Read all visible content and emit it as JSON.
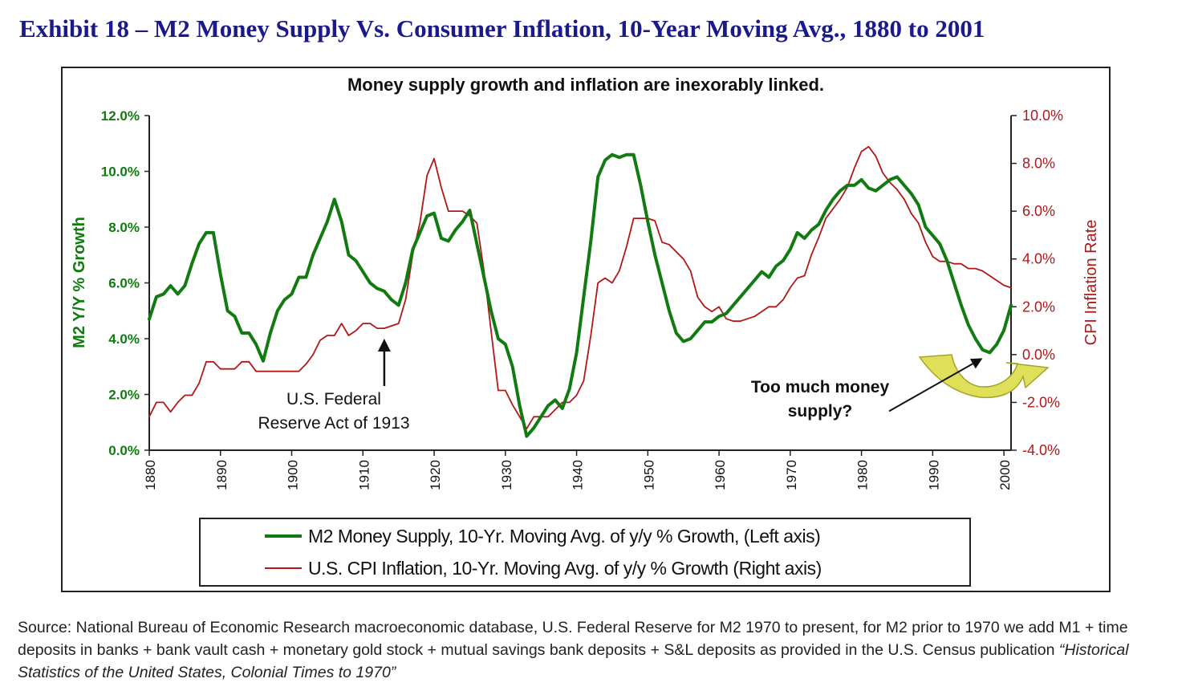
{
  "exhibit_title": "Exhibit 18 – M2 Money Supply Vs. Consumer Inflation, 10-Year Moving Avg., 1880 to 2001",
  "source_note": {
    "text": "Source: National Bureau of Economic Research macroeconomic database, U.S. Federal Reserve for M2 1970 to present, for M2 prior to 1970 we add M1 + time deposits in banks + bank vault cash + monetary gold stock + mutual savings bank deposits + S&L deposits as provided in the U.S. Census publication ",
    "italic": "“Historical Statistics of the United States, Colonial Times to 1970”"
  },
  "colors": {
    "m2": "#117a11",
    "cpi": "#b01818",
    "left_axis": "#117a11",
    "right_axis": "#b01818",
    "arrow_yellow": "#e0df5a"
  },
  "chart_data": {
    "type": "line",
    "title": "Money supply growth and inflation are inexorably linked.",
    "xlabel": "",
    "ylabel": "M2 Y/Y % Growth",
    "y2label": "CPI Inflation Rate",
    "xlim": [
      1880,
      2001
    ],
    "ylim": [
      0,
      12
    ],
    "y2lim": [
      -4,
      10
    ],
    "x_ticks": [
      "1880",
      "1890",
      "1900",
      "1910",
      "1920",
      "1930",
      "1940",
      "1950",
      "1960",
      "1970",
      "1980",
      "1990",
      "2000"
    ],
    "y_ticks": [
      "0.0%",
      "2.0%",
      "4.0%",
      "6.0%",
      "8.0%",
      "10.0%",
      "12.0%"
    ],
    "y2_ticks": [
      "-4.0%",
      "-2.0%",
      "0.0%",
      "2.0%",
      "4.0%",
      "6.0%",
      "8.0%",
      "10.0%"
    ],
    "grid": false,
    "legend_position": "bottom",
    "series": [
      {
        "name": "M2 Money Supply, 10-Yr. Moving Avg. of y/y % Growth, (Left axis)",
        "axis": "left",
        "x": [
          1880,
          1881,
          1882,
          1883,
          1884,
          1885,
          1886,
          1887,
          1888,
          1889,
          1890,
          1891,
          1892,
          1893,
          1894,
          1895,
          1896,
          1897,
          1898,
          1899,
          1900,
          1901,
          1902,
          1903,
          1904,
          1905,
          1906,
          1907,
          1908,
          1909,
          1910,
          1911,
          1912,
          1913,
          1914,
          1915,
          1916,
          1917,
          1918,
          1919,
          1920,
          1921,
          1922,
          1923,
          1924,
          1925,
          1926,
          1927,
          1928,
          1929,
          1930,
          1931,
          1932,
          1933,
          1934,
          1935,
          1936,
          1937,
          1938,
          1939,
          1940,
          1941,
          1942,
          1943,
          1944,
          1945,
          1946,
          1947,
          1948,
          1949,
          1950,
          1951,
          1952,
          1953,
          1954,
          1955,
          1956,
          1957,
          1958,
          1959,
          1960,
          1961,
          1962,
          1963,
          1964,
          1965,
          1966,
          1967,
          1968,
          1969,
          1970,
          1971,
          1972,
          1973,
          1974,
          1975,
          1976,
          1977,
          1978,
          1979,
          1980,
          1981,
          1982,
          1983,
          1984,
          1985,
          1986,
          1987,
          1988,
          1989,
          1990,
          1991,
          1992,
          1993,
          1994,
          1995,
          1996,
          1997,
          1998,
          1999,
          2000,
          2001
        ],
        "values": [
          4.7,
          5.5,
          5.6,
          5.9,
          5.6,
          5.9,
          6.7,
          7.4,
          7.8,
          7.8,
          6.3,
          5.0,
          4.8,
          4.2,
          4.2,
          3.8,
          3.2,
          4.2,
          5.0,
          5.4,
          5.6,
          6.2,
          6.2,
          7.0,
          7.6,
          8.2,
          9.0,
          8.2,
          7.0,
          6.8,
          6.4,
          6.0,
          5.8,
          5.7,
          5.4,
          5.2,
          6.0,
          7.2,
          7.8,
          8.4,
          8.5,
          7.6,
          7.5,
          7.9,
          8.2,
          8.6,
          7.4,
          6.2,
          5.0,
          4.0,
          3.8,
          3.0,
          1.6,
          0.5,
          0.8,
          1.2,
          1.6,
          1.8,
          1.5,
          2.2,
          3.5,
          5.5,
          7.5,
          9.8,
          10.4,
          10.6,
          10.5,
          10.6,
          10.6,
          9.5,
          8.2,
          7.0,
          6.0,
          5.0,
          4.2,
          3.9,
          4.0,
          4.3,
          4.6,
          4.6,
          4.8,
          4.9,
          5.2,
          5.5,
          5.8,
          6.1,
          6.4,
          6.2,
          6.6,
          6.8,
          7.2,
          7.8,
          7.6,
          7.9,
          8.1,
          8.6,
          9.0,
          9.3,
          9.5,
          9.5,
          9.7,
          9.4,
          9.3,
          9.5,
          9.7,
          9.8,
          9.5,
          9.2,
          8.8,
          8.0,
          7.7,
          7.4,
          6.8,
          6.0,
          5.2,
          4.5,
          4.0,
          3.6,
          3.5,
          3.8,
          4.3,
          5.2
        ]
      },
      {
        "name": "U.S. CPI Inflation, 10-Yr. Moving Avg. of y/y % Growth (Right axis)",
        "axis": "right",
        "x": [
          1880,
          1881,
          1882,
          1883,
          1884,
          1885,
          1886,
          1887,
          1888,
          1889,
          1890,
          1891,
          1892,
          1893,
          1894,
          1895,
          1896,
          1897,
          1898,
          1899,
          1900,
          1901,
          1902,
          1903,
          1904,
          1905,
          1906,
          1907,
          1908,
          1909,
          1910,
          1911,
          1912,
          1913,
          1914,
          1915,
          1916,
          1917,
          1918,
          1919,
          1920,
          1921,
          1922,
          1923,
          1924,
          1925,
          1926,
          1927,
          1928,
          1929,
          1930,
          1931,
          1932,
          1933,
          1934,
          1935,
          1936,
          1937,
          1938,
          1939,
          1940,
          1941,
          1942,
          1943,
          1944,
          1945,
          1946,
          1947,
          1948,
          1949,
          1950,
          1951,
          1952,
          1953,
          1954,
          1955,
          1956,
          1957,
          1958,
          1959,
          1960,
          1961,
          1962,
          1963,
          1964,
          1965,
          1966,
          1967,
          1968,
          1969,
          1970,
          1971,
          1972,
          1973,
          1974,
          1975,
          1976,
          1977,
          1978,
          1979,
          1980,
          1981,
          1982,
          1983,
          1984,
          1985,
          1986,
          1987,
          1988,
          1989,
          1990,
          1991,
          1992,
          1993,
          1994,
          1995,
          1996,
          1997,
          1998,
          1999,
          2000,
          2001
        ],
        "values": [
          -2.6,
          -2.0,
          -2.0,
          -2.4,
          -2.0,
          -1.7,
          -1.7,
          -1.2,
          -0.3,
          -0.3,
          -0.6,
          -0.6,
          -0.6,
          -0.3,
          -0.3,
          -0.7,
          -0.7,
          -0.7,
          -0.7,
          -0.7,
          -0.7,
          -0.7,
          -0.4,
          0.0,
          0.6,
          0.8,
          0.8,
          1.3,
          0.8,
          1.0,
          1.3,
          1.3,
          1.1,
          1.1,
          1.2,
          1.3,
          2.3,
          4.2,
          5.5,
          7.5,
          8.2,
          7.0,
          6.0,
          6.0,
          6.0,
          5.8,
          5.5,
          3.5,
          1.0,
          -1.5,
          -1.5,
          -2.1,
          -2.6,
          -3.1,
          -2.6,
          -2.6,
          -2.6,
          -2.3,
          -2.0,
          -2.0,
          -1.7,
          -1.1,
          0.8,
          3.0,
          3.2,
          3.0,
          3.5,
          4.5,
          5.7,
          5.7,
          5.7,
          5.6,
          4.7,
          4.6,
          4.3,
          4.0,
          3.5,
          2.4,
          2.0,
          1.8,
          2.0,
          1.5,
          1.4,
          1.4,
          1.5,
          1.6,
          1.8,
          2.0,
          2.0,
          2.3,
          2.8,
          3.2,
          3.3,
          4.2,
          4.9,
          5.7,
          6.1,
          6.5,
          7.0,
          7.8,
          8.5,
          8.7,
          8.3,
          7.6,
          7.2,
          6.9,
          6.5,
          5.9,
          5.5,
          4.7,
          4.1,
          3.9,
          3.9,
          3.8,
          3.8,
          3.6,
          3.6,
          3.5,
          3.3,
          3.1,
          2.9,
          2.8
        ]
      }
    ],
    "annotations": [
      {
        "text_lines": [
          "U.S. Federal",
          "Reserve Act of 1913"
        ],
        "x": 1913,
        "arrow_tip_y": 4.0,
        "arrow_tail_y": 2.3
      },
      {
        "text_lines": [
          "Too much money",
          "supply?"
        ],
        "x": 1997,
        "arrow_tip_y": 3.3,
        "arrow_tail_y": 1.4
      }
    ]
  }
}
